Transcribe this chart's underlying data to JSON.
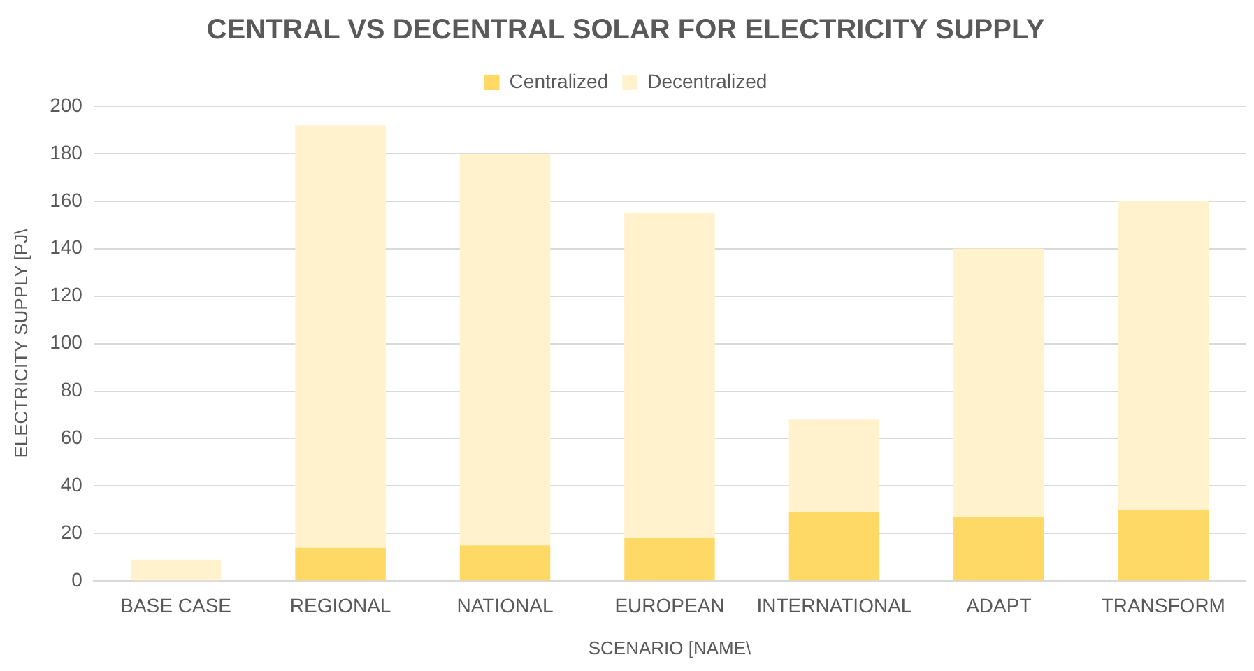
{
  "chart_data": {
    "type": "bar",
    "title": "CENTRAL VS DECENTRAL SOLAR FOR ELECTRICITY SUPPLY",
    "xlabel": "SCENARIO [NAME\\",
    "ylabel": "ELECTRICITY SUPPLY [PJ\\",
    "categories": [
      "BASE CASE",
      "REGIONAL",
      "NATIONAL",
      "EUROPEAN",
      "INTERNATIONAL",
      "ADAPT",
      "TRANSFORM"
    ],
    "stacked": true,
    "series": [
      {
        "name": "Centralized",
        "color": "#ffd966",
        "values": [
          0,
          14,
          15,
          18,
          29,
          27,
          30
        ]
      },
      {
        "name": "Decentralized",
        "color": "#fff2cc",
        "values": [
          9,
          178,
          165,
          137,
          39,
          113,
          130
        ]
      }
    ],
    "ylim": [
      0,
      200
    ],
    "yticks": [
      0,
      20,
      40,
      60,
      80,
      100,
      120,
      140,
      160,
      180,
      200
    ],
    "grid": "y",
    "legend": "top"
  }
}
